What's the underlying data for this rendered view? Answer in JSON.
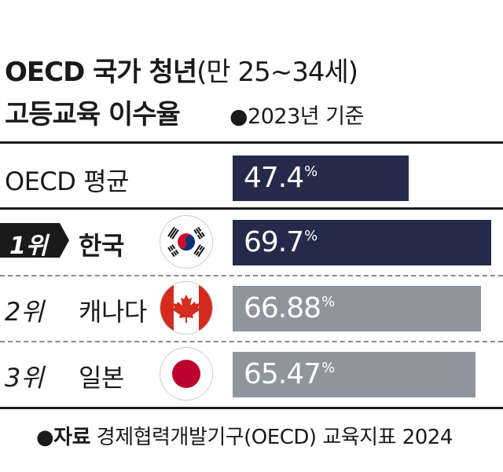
{
  "header": {
    "title_main": "OECD 국가 청년",
    "title_paren": "(만 25~34세)",
    "title_line2": "고등교육 이수율",
    "basis": "●2023년 기준"
  },
  "chart_data": {
    "type": "bar",
    "title": "OECD 국가 청년(만 25~34세) 고등교육 이수율",
    "subtitle": "●2023년 기준",
    "categories": [
      "OECD 평균",
      "한국",
      "캐나다",
      "일본"
    ],
    "ranks": [
      "",
      "1위",
      "2위",
      "3위"
    ],
    "values": [
      47.4,
      69.7,
      66.88,
      65.47
    ],
    "value_labels": [
      "47.4",
      "69.7",
      "66.88",
      "65.47"
    ],
    "unit": "%",
    "colors": [
      "#242a4a",
      "#242a4a",
      "#8f959c",
      "#8f959c"
    ],
    "flags": [
      "",
      "korea-flag-icon",
      "canada-flag-icon",
      "japan-flag-icon"
    ],
    "xlim": [
      0,
      72
    ]
  },
  "source": {
    "label": "●자료",
    "text": "경제협력개발기구(OECD) 교육지표 2024"
  }
}
